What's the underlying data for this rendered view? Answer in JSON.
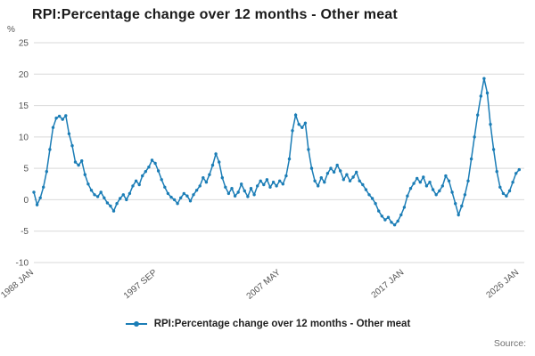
{
  "title": "RPI:Percentage change over 12 months - Other meat",
  "y_axis_unit": "%",
  "legend_label": "RPI:Percentage change over 12 months - Other meat",
  "source_label": "Source:",
  "colors": {
    "line": "#1b7db6",
    "grid": "#d9d9d9",
    "tick_text": "#555555"
  },
  "chart_data": {
    "type": "line",
    "title": "RPI:Percentage change over 12 months - Other meat",
    "xlabel": "",
    "ylabel": "%",
    "xlim": [
      1988.0,
      2026.4
    ],
    "ylim": [
      -10,
      25
    ],
    "y_ticks": [
      25,
      20,
      15,
      10,
      5,
      0,
      -5,
      -10
    ],
    "x_tick_labels": [
      "1988 JAN",
      "1997 SEP",
      "2007 MAY",
      "2017 JAN",
      "2026 JAN"
    ],
    "x_tick_positions": [
      1988.0,
      1997.6667,
      2007.3333,
      2017.0,
      2026.0
    ],
    "grid": "horizontal",
    "legend_position": "bottom",
    "series": [
      {
        "name": "RPI:Percentage change over 12 months - Other meat",
        "x_start": 1988.0,
        "x_step": 0.25,
        "values": [
          1.2,
          -0.8,
          0.3,
          2.0,
          4.5,
          8.0,
          11.5,
          13.0,
          13.3,
          12.8,
          13.4,
          10.5,
          8.6,
          6.0,
          5.5,
          6.2,
          4.0,
          2.5,
          1.5,
          0.8,
          0.5,
          1.2,
          0.3,
          -0.5,
          -1.0,
          -1.8,
          -0.6,
          0.2,
          0.8,
          0.0,
          1.0,
          2.2,
          3.0,
          2.4,
          3.8,
          4.5,
          5.2,
          6.3,
          5.8,
          4.6,
          3.2,
          2.0,
          1.0,
          0.4,
          0.0,
          -0.6,
          0.3,
          1.0,
          0.6,
          -0.2,
          0.8,
          1.5,
          2.2,
          3.5,
          2.8,
          4.0,
          5.5,
          7.3,
          6.0,
          3.5,
          2.0,
          1.0,
          1.8,
          0.6,
          1.2,
          2.5,
          1.4,
          0.5,
          1.8,
          0.8,
          2.2,
          3.0,
          2.4,
          3.2,
          2.0,
          2.8,
          2.2,
          3.0,
          2.5,
          3.8,
          6.5,
          11.0,
          13.5,
          12.0,
          11.5,
          12.2,
          8.0,
          5.0,
          3.0,
          2.2,
          3.5,
          2.8,
          4.2,
          5.0,
          4.4,
          5.5,
          4.6,
          3.2,
          4.0,
          3.0,
          3.6,
          4.4,
          3.0,
          2.4,
          1.6,
          0.8,
          0.2,
          -0.6,
          -1.8,
          -2.6,
          -3.2,
          -2.8,
          -3.6,
          -4.0,
          -3.4,
          -2.4,
          -1.2,
          0.6,
          1.8,
          2.6,
          3.4,
          2.8,
          3.6,
          2.2,
          2.8,
          1.6,
          0.8,
          1.4,
          2.2,
          3.8,
          3.0,
          1.2,
          -0.6,
          -2.4,
          -1.0,
          0.8,
          3.0,
          6.5,
          10.0,
          13.5,
          16.5,
          19.3,
          17.0,
          12.0,
          8.0,
          4.5,
          2.0,
          1.0,
          0.6,
          1.4,
          2.8,
          4.2,
          4.8
        ]
      }
    ]
  }
}
